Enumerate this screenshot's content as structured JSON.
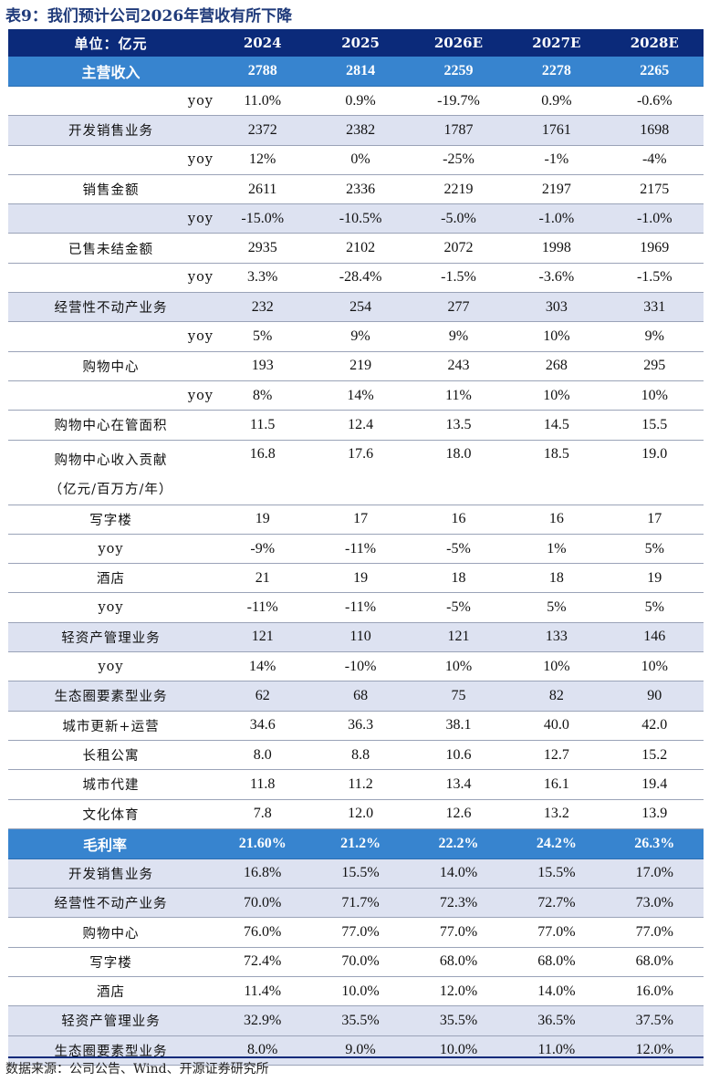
{
  "title": "表9：我们预计公司2026年营收有所下降",
  "header": [
    "单位：亿元",
    "2024",
    "2025",
    "2026E",
    "2027E",
    "2028E"
  ],
  "rows": [
    {
      "label": "主营收入",
      "values": [
        "2788",
        "2814",
        "2259",
        "2278",
        "2265"
      ],
      "style": "sect",
      "align": "center"
    },
    {
      "label": "yoy",
      "values": [
        "11.0%",
        "0.9%",
        "-19.7%",
        "0.9%",
        "-0.6%"
      ],
      "style": "plain",
      "align": "right"
    },
    {
      "label": "开发销售业务",
      "values": [
        "2372",
        "2382",
        "1787",
        "1761",
        "1698"
      ],
      "style": "shade",
      "align": "center"
    },
    {
      "label": "yoy",
      "values": [
        "12%",
        "0%",
        "-25%",
        "-1%",
        "-4%"
      ],
      "style": "plain",
      "align": "right"
    },
    {
      "label": "销售金额",
      "values": [
        "2611",
        "2336",
        "2219",
        "2197",
        "2175"
      ],
      "style": "plain",
      "align": "center"
    },
    {
      "label": "yoy",
      "values": [
        "-15.0%",
        "-10.5%",
        "-5.0%",
        "-1.0%",
        "-1.0%"
      ],
      "style": "shade",
      "align": "right"
    },
    {
      "label": "已售未结金额",
      "values": [
        "2935",
        "2102",
        "2072",
        "1998",
        "1969"
      ],
      "style": "plain",
      "align": "center"
    },
    {
      "label": "yoy",
      "values": [
        "3.3%",
        "-28.4%",
        "-1.5%",
        "-3.6%",
        "-1.5%"
      ],
      "style": "plain",
      "align": "right"
    },
    {
      "label": "经营性不动产业务",
      "values": [
        "232",
        "254",
        "277",
        "303",
        "331"
      ],
      "style": "shade",
      "align": "center"
    },
    {
      "label": "yoy",
      "values": [
        "5%",
        "9%",
        "9%",
        "10%",
        "9%"
      ],
      "style": "plain",
      "align": "right"
    },
    {
      "label": "购物中心",
      "values": [
        "193",
        "219",
        "243",
        "268",
        "295"
      ],
      "style": "plain",
      "align": "center"
    },
    {
      "label": "yoy",
      "values": [
        "8%",
        "14%",
        "11%",
        "10%",
        "10%"
      ],
      "style": "plain",
      "align": "right"
    },
    {
      "label": "购物中心在管面积",
      "values": [
        "11.5",
        "12.4",
        "13.5",
        "14.5",
        "15.5"
      ],
      "style": "plain",
      "align": "center"
    },
    {
      "label": "购物中心收入贡献",
      "label2": "（亿元/百万方/年）",
      "values": [
        "16.8",
        "17.6",
        "18.0",
        "18.5",
        "19.0"
      ],
      "style": "tall",
      "align": "center"
    },
    {
      "label": "写字楼",
      "values": [
        "19",
        "17",
        "16",
        "16",
        "17"
      ],
      "style": "plain",
      "align": "center"
    },
    {
      "label": "yoy",
      "values": [
        "-9%",
        "-11%",
        "-5%",
        "1%",
        "5%"
      ],
      "style": "plain",
      "align": "center"
    },
    {
      "label": "酒店",
      "values": [
        "21",
        "19",
        "18",
        "18",
        "19"
      ],
      "style": "plain",
      "align": "center"
    },
    {
      "label": "yoy",
      "values": [
        "-11%",
        "-11%",
        "-5%",
        "5%",
        "5%"
      ],
      "style": "plain",
      "align": "center"
    },
    {
      "label": "轻资产管理业务",
      "values": [
        "121",
        "110",
        "121",
        "133",
        "146"
      ],
      "style": "shade",
      "align": "center"
    },
    {
      "label": "yoy",
      "values": [
        "14%",
        "-10%",
        "10%",
        "10%",
        "10%"
      ],
      "style": "plain",
      "align": "center"
    },
    {
      "label": "生态圈要素型业务",
      "values": [
        "62",
        "68",
        "75",
        "82",
        "90"
      ],
      "style": "shade",
      "align": "center"
    },
    {
      "label": "城市更新+运营",
      "values": [
        "34.6",
        "36.3",
        "38.1",
        "40.0",
        "42.0"
      ],
      "style": "plain",
      "align": "center"
    },
    {
      "label": "长租公寓",
      "values": [
        "8.0",
        "8.8",
        "10.6",
        "12.7",
        "15.2"
      ],
      "style": "plain",
      "align": "center"
    },
    {
      "label": "城市代建",
      "values": [
        "11.8",
        "11.2",
        "13.4",
        "16.1",
        "19.4"
      ],
      "style": "plain",
      "align": "center"
    },
    {
      "label": "文化体育",
      "values": [
        "7.8",
        "12.0",
        "12.6",
        "13.2",
        "13.9"
      ],
      "style": "plain",
      "align": "center"
    },
    {
      "label": "毛利率",
      "values": [
        "21.60%",
        "21.2%",
        "22.2%",
        "24.2%",
        "26.3%"
      ],
      "style": "sect",
      "align": "left"
    },
    {
      "label": "开发销售业务",
      "values": [
        "16.8%",
        "15.5%",
        "14.0%",
        "15.5%",
        "17.0%"
      ],
      "style": "shade",
      "align": "center"
    },
    {
      "label": "经营性不动产业务",
      "values": [
        "70.0%",
        "71.7%",
        "72.3%",
        "72.7%",
        "73.0%"
      ],
      "style": "shade",
      "align": "center"
    },
    {
      "label": "购物中心",
      "values": [
        "76.0%",
        "77.0%",
        "77.0%",
        "77.0%",
        "77.0%"
      ],
      "style": "plain",
      "align": "center"
    },
    {
      "label": "写字楼",
      "values": [
        "72.4%",
        "70.0%",
        "68.0%",
        "68.0%",
        "68.0%"
      ],
      "style": "plain",
      "align": "center"
    },
    {
      "label": "酒店",
      "values": [
        "11.4%",
        "10.0%",
        "12.0%",
        "14.0%",
        "16.0%"
      ],
      "style": "plain",
      "align": "center"
    },
    {
      "label": "轻资产管理业务",
      "values": [
        "32.9%",
        "35.5%",
        "35.5%",
        "36.5%",
        "37.5%"
      ],
      "style": "shade",
      "align": "center"
    },
    {
      "label": "生态圈要素型业务",
      "values": [
        "8.0%",
        "9.0%",
        "10.0%",
        "11.0%",
        "12.0%"
      ],
      "style": "shade",
      "align": "center"
    }
  ],
  "source": "数据来源：公司公告、Wind、开源证券研究所"
}
